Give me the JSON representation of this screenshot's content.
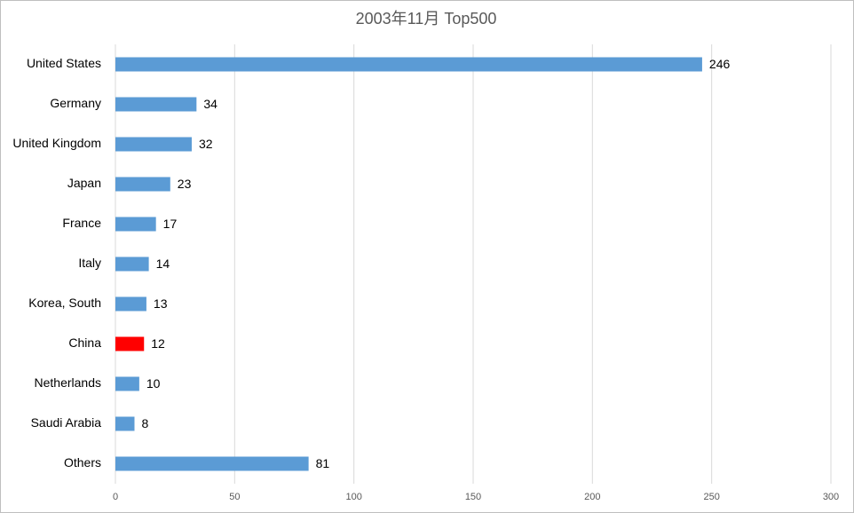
{
  "chart_data": {
    "type": "bar",
    "orientation": "horizontal",
    "title": "2003年11月 Top500",
    "categories": [
      "United States",
      "Germany",
      "United Kingdom",
      "Japan",
      "France",
      "Italy",
      "Korea, South",
      "China",
      "Netherlands",
      "Saudi Arabia",
      "Others"
    ],
    "values": [
      246,
      34,
      32,
      23,
      17,
      14,
      13,
      12,
      10,
      8,
      81
    ],
    "colors": [
      "#5b9bd5",
      "#5b9bd5",
      "#5b9bd5",
      "#5b9bd5",
      "#5b9bd5",
      "#5b9bd5",
      "#5b9bd5",
      "#ff0000",
      "#5b9bd5",
      "#5b9bd5",
      "#5b9bd5"
    ],
    "xlim": [
      0,
      300
    ],
    "xticks": [
      0,
      50,
      100,
      150,
      200,
      250,
      300
    ],
    "grid": true
  }
}
